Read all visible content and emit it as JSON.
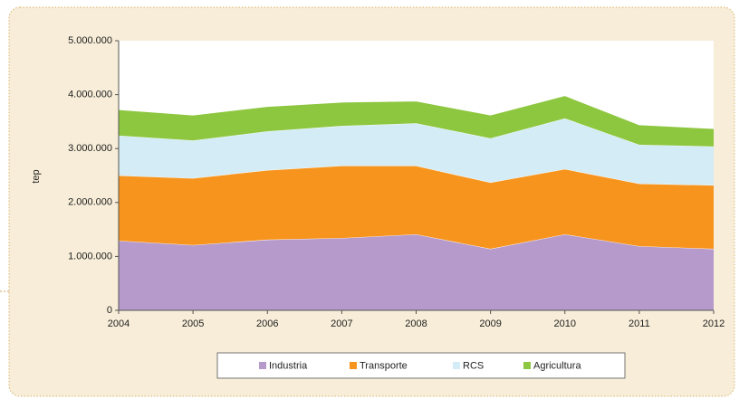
{
  "chart_data": {
    "type": "stacked_area",
    "y_label": "tep",
    "categories": [
      "2004",
      "2005",
      "2006",
      "2007",
      "2008",
      "2009",
      "2010",
      "2011",
      "2012"
    ],
    "series": [
      {
        "name": "Industria",
        "color": "#b59acb",
        "values": [
          1290000,
          1210000,
          1310000,
          1340000,
          1410000,
          1140000,
          1410000,
          1190000,
          1140000
        ]
      },
      {
        "name": "Transporte",
        "color": "#f7941d",
        "values": [
          1210000,
          1240000,
          1290000,
          1340000,
          1270000,
          1230000,
          1210000,
          1160000,
          1180000
        ]
      },
      {
        "name": "RCS",
        "color": "#d4ecf5",
        "values": [
          740000,
          700000,
          720000,
          740000,
          790000,
          820000,
          940000,
          720000,
          720000
        ]
      },
      {
        "name": "Agricultura",
        "color": "#8dc63f",
        "values": [
          480000,
          470000,
          460000,
          440000,
          410000,
          430000,
          420000,
          370000,
          330000
        ]
      }
    ],
    "ylim": [
      0,
      5000000
    ],
    "yticks": [
      0,
      {
        "value": 1000000,
        "label": "1.000.000"
      },
      {
        "value": 2000000,
        "label": "2.000.000"
      },
      {
        "value": 3000000,
        "label": "3.000.000"
      },
      {
        "value": 4000000,
        "label": "4.000.000"
      },
      {
        "value": 5000000,
        "label": "5.000.000"
      }
    ],
    "legend": "bottom"
  }
}
